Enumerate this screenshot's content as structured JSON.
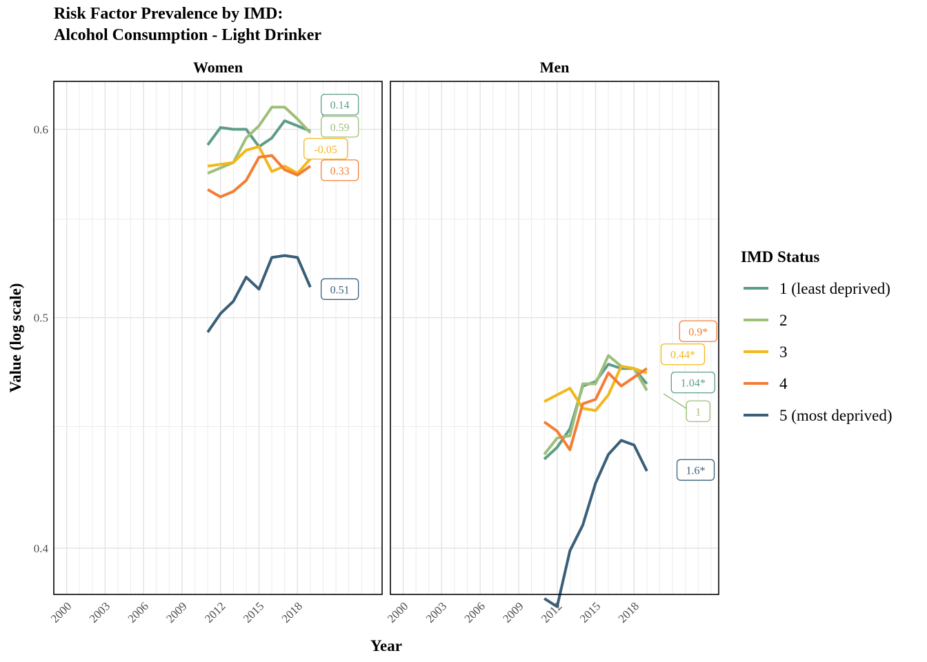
{
  "chart_data": {
    "type": "line",
    "title_line1": "Risk Factor Prevalence by IMD:",
    "title_line2": "Alcohol Consumption - Light Drinker",
    "xlabel": "Year",
    "ylabel": "Value (log scale)",
    "y_scale": "log",
    "ylim": [
      0.3825,
      0.6285
    ],
    "xlim": [
      1999,
      2024.6
    ],
    "x_ticks": [
      "2000",
      "2003",
      "2006",
      "2009",
      "2012",
      "2015",
      "2018"
    ],
    "y_ticks": [
      "0.4",
      "0.5",
      "0.6"
    ],
    "grid": true,
    "legend": {
      "title": "IMD Status",
      "position": "right",
      "entries": [
        "1 (least deprived)",
        "2",
        "3",
        "4",
        "5 (most deprived)"
      ]
    },
    "colors": [
      "#5e9c8a",
      "#9dbf7a",
      "#f4b71a",
      "#f47d35",
      "#3a5f78"
    ],
    "years": [
      2011,
      2012,
      2013,
      2014,
      2015,
      2016,
      2017,
      2018,
      2019
    ],
    "panels": [
      {
        "name": "Women",
        "series": [
          {
            "name": "1 (least deprived)",
            "values": [
              0.591,
              0.601,
              0.6,
              0.6,
              0.59,
              0.595,
              0.605,
              0.602,
              0.599
            ],
            "label": "0.14",
            "label_x": 2021.3,
            "label_y": 0.6145
          },
          {
            "name": "2",
            "values": [
              0.575,
              0.578,
              0.581,
              0.595,
              0.602,
              0.613,
              0.613,
              0.606,
              0.598
            ],
            "label": "0.59",
            "label_x": 2021.3,
            "label_y": 0.6015
          },
          {
            "name": "3",
            "values": [
              0.579,
              0.58,
              0.581,
              0.588,
              0.59,
              0.576,
              0.579,
              0.575,
              0.583
            ],
            "label": "-0.05",
            "label_x": 2020.2,
            "label_y": 0.5888
          },
          {
            "name": "4",
            "values": [
              0.566,
              0.562,
              0.565,
              0.571,
              0.584,
              0.585,
              0.577,
              0.574,
              0.579
            ],
            "label": "0.33",
            "label_x": 2021.3,
            "label_y": 0.5767
          },
          {
            "name": "5 (most deprived)",
            "values": [
              0.493,
              0.502,
              0.508,
              0.52,
              0.514,
              0.53,
              0.531,
              0.53,
              0.515
            ],
            "label": "0.51",
            "label_x": 2021.3,
            "label_y": 0.514
          }
        ]
      },
      {
        "name": "Men",
        "series": [
          {
            "name": "1 (least deprived)",
            "values": [
              0.436,
              0.441,
              0.449,
              0.468,
              0.47,
              0.478,
              0.476,
              0.476,
              0.469
            ],
            "label": "1.04*",
            "label_x": 2022.6,
            "label_y": 0.4696
          },
          {
            "name": "2",
            "values": [
              0.438,
              0.445,
              0.446,
              0.469,
              0.469,
              0.482,
              0.477,
              0.476,
              0.466
            ],
            "label": "1",
            "label_x": 2023.0,
            "label_y": 0.4567
          },
          {
            "name": "3",
            "values": [
              0.461,
              0.464,
              0.467,
              0.458,
              0.457,
              0.464,
              0.477,
              0.476,
              0.474
            ],
            "label": "0.44*",
            "label_x": 2021.8,
            "label_y": 0.4826
          },
          {
            "name": "4",
            "values": [
              0.452,
              0.448,
              0.44,
              0.46,
              0.462,
              0.474,
              0.468,
              0.472,
              0.476
            ],
            "label": "0.9*",
            "label_x": 2023.0,
            "label_y": 0.4935
          },
          {
            "name": "5 (most deprived)",
            "values": [
              0.381,
              0.378,
              0.399,
              0.409,
              0.426,
              0.438,
              0.444,
              0.442,
              0.431
            ],
            "label": "1.6*",
            "label_x": 2022.8,
            "label_y": 0.4315
          }
        ]
      }
    ]
  }
}
